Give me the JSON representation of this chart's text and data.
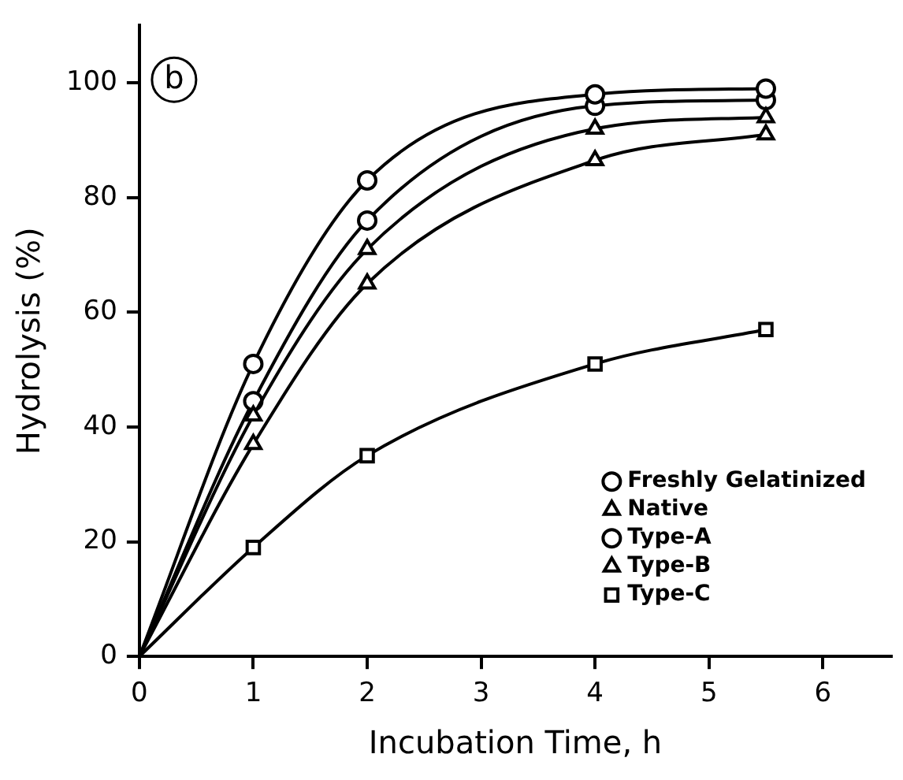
{
  "chart_data": {
    "type": "line",
    "xlabel": "Incubation Time, h",
    "ylabel": "Hydrolysis (%)",
    "annotations": [
      "b"
    ],
    "x": [
      0,
      1,
      2,
      4,
      5.5
    ],
    "series": [
      {
        "name": "Freshly Gelatinized",
        "color": "#000000",
        "marker": "circle",
        "values": [
          0,
          51,
          83,
          98,
          99
        ]
      },
      {
        "name": "Native",
        "color": "#000000",
        "marker": "triangle",
        "values": [
          0,
          42,
          71,
          92,
          94
        ]
      },
      {
        "name": "Type-A",
        "color": "#000000",
        "marker": "circle",
        "values": [
          0,
          44.5,
          76,
          96,
          97
        ]
      },
      {
        "name": "Type-B",
        "color": "#000000",
        "marker": "triangle",
        "values": [
          0,
          37,
          65,
          86.5,
          91
        ]
      },
      {
        "name": "Type-C",
        "color": "#000000",
        "marker": "square",
        "values": [
          0,
          19,
          35,
          51,
          57
        ]
      }
    ],
    "xlim": [
      0,
      6.6
    ],
    "ylim": [
      0,
      110
    ],
    "xticks": [
      0,
      1,
      2,
      3,
      4,
      5,
      6
    ],
    "yticks": [
      0,
      20,
      40,
      60,
      80,
      100
    ],
    "grid": false,
    "legend": "bottom right",
    "line_style": "solid"
  }
}
